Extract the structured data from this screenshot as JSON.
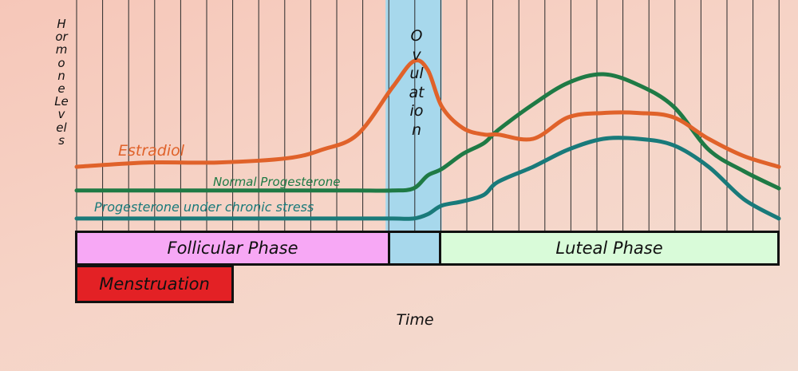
{
  "title": "",
  "y_axis_label": "Hormone Levels",
  "x_axis_label": "Time",
  "ovulation_label": "Ovulation",
  "phases": {
    "follicular": "Follicular Phase",
    "luteal": "Luteal Phase",
    "menstruation": "Menstruation"
  },
  "colors": {
    "background": "#f6cfc1",
    "estradiol": "#e0622a",
    "normal_progesterone": "#1f7a45",
    "stress_progesterone": "#197a7a",
    "ovulation": "#a7d8ec",
    "follicular_phase": "#f7a8f5",
    "luteal_phase": "#d9fbd9",
    "menstruation": "#e32125"
  },
  "chart_data": {
    "type": "line",
    "xlabel": "Time",
    "ylabel": "Hormone Levels",
    "xlim": [
      0,
      100
    ],
    "ylim": [
      0,
      100
    ],
    "grid": true,
    "x": [
      0,
      10,
      20,
      30,
      35,
      40,
      45,
      48,
      50,
      52,
      55,
      58,
      60,
      65,
      70,
      75,
      80,
      85,
      90,
      95,
      100
    ],
    "series": [
      {
        "name": "Estradiol",
        "color": "#e0622a",
        "values": [
          27,
          29,
          29,
          31,
          35,
          42,
          64,
          76,
          72,
          55,
          45,
          42,
          42,
          40,
          50,
          52,
          52,
          50,
          40,
          32,
          27
        ]
      },
      {
        "name": "Normal Progesterone",
        "color": "#1f7a45",
        "values": [
          16,
          16,
          16,
          16,
          16,
          16,
          16,
          17,
          23,
          26,
          33,
          38,
          44,
          56,
          66,
          70,
          65,
          55,
          35,
          25,
          17
        ]
      },
      {
        "name": "Progesterone under chronic stress",
        "color": "#197a7a",
        "values": [
          3,
          3,
          3,
          3,
          3,
          3,
          3,
          3,
          5,
          9,
          11,
          14,
          20,
          27,
          35,
          40,
          40,
          37,
          27,
          12,
          3
        ]
      }
    ],
    "regions": [
      {
        "label": "Follicular Phase",
        "start": 0,
        "end": 44
      },
      {
        "label": "Ovulation",
        "start": 44,
        "end": 52
      },
      {
        "label": "Luteal Phase",
        "start": 52,
        "end": 100
      },
      {
        "label": "Menstruation",
        "start": 0,
        "end": 22
      }
    ]
  }
}
